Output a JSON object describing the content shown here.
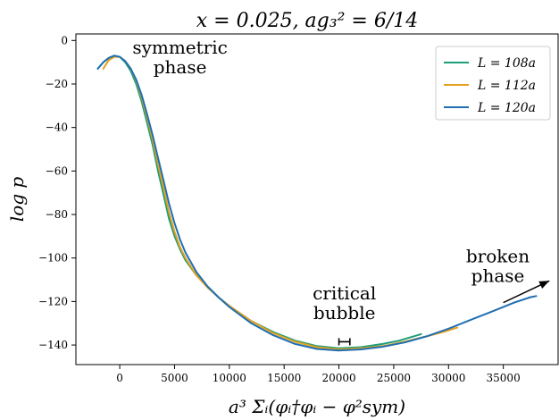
{
  "chart_data": {
    "type": "line",
    "title": "x = 0.025,  ag₃² = 6/14",
    "xlabel": "a³ Σᵢ(φᵢ†φᵢ − φ²sym)",
    "ylabel": "log p",
    "xlim": [
      -4000,
      40000
    ],
    "ylim": [
      -149,
      3
    ],
    "xticks": [
      0,
      5000,
      10000,
      15000,
      20000,
      25000,
      30000,
      35000
    ],
    "yticks": [
      0,
      -20,
      -40,
      -60,
      -80,
      -100,
      -120,
      -140
    ],
    "xtick_labels": [
      "0",
      "5000",
      "10000",
      "15000",
      "20000",
      "25000",
      "30000",
      "35000"
    ],
    "ytick_labels": [
      "0",
      "−20",
      "−40",
      "−60",
      "−80",
      "−100",
      "−120",
      "−140"
    ],
    "grid": false,
    "legend_position": "top-right",
    "series": [
      {
        "name": "L = 108a",
        "color": "#1b9e77",
        "x": [
          -2000,
          -1500,
          -1000,
          -500,
          0,
          500,
          1000,
          1500,
          2000,
          2500,
          3000,
          3500,
          4000,
          4500,
          5000,
          5500,
          6000,
          7000,
          8000,
          9000,
          10000,
          12000,
          14000,
          16000,
          18000,
          20000,
          22000,
          24000,
          25500,
          26500,
          27500
        ],
        "y": [
          -13,
          -10,
          -8,
          -7,
          -7.5,
          -10,
          -14,
          -20,
          -28,
          -38,
          -48,
          -60,
          -71,
          -82,
          -90,
          -96,
          -101,
          -108,
          -113,
          -118,
          -122,
          -129,
          -134,
          -138,
          -140.5,
          -141.5,
          -141,
          -139.5,
          -138,
          -136.5,
          -135
        ]
      },
      {
        "name": "L = 112a",
        "color": "#e6a01e",
        "x": [
          -1500,
          -1000,
          -500,
          0,
          500,
          1000,
          1500,
          2000,
          2500,
          3000,
          3500,
          4000,
          4500,
          5000,
          5500,
          6000,
          7000,
          8000,
          9000,
          10000,
          12000,
          14000,
          16000,
          18000,
          20000,
          22000,
          24000,
          26000,
          28000,
          29500,
          30800
        ],
        "y": [
          -13,
          -9,
          -7.5,
          -7.5,
          -9.5,
          -13,
          -18.5,
          -26,
          -35.5,
          -45.5,
          -57,
          -68,
          -79,
          -88,
          -95,
          -100,
          -108,
          -113.5,
          -118,
          -122,
          -129,
          -134.5,
          -138.5,
          -141,
          -142,
          -141.5,
          -140.5,
          -138.5,
          -136,
          -134,
          -132
        ]
      },
      {
        "name": "L = 120a",
        "color": "#1f6fb2",
        "x": [
          -2000,
          -1500,
          -1000,
          -500,
          0,
          500,
          1000,
          1500,
          2000,
          2500,
          3000,
          3500,
          4000,
          4500,
          5000,
          5500,
          6000,
          7000,
          8000,
          9000,
          10000,
          12000,
          14000,
          16000,
          18000,
          20000,
          22000,
          24000,
          26000,
          28000,
          30000,
          32000,
          34000,
          36000,
          37500,
          38000
        ],
        "y": [
          -13,
          -10,
          -8,
          -7,
          -7.5,
          -9.5,
          -13,
          -18,
          -25,
          -34,
          -43.5,
          -54,
          -64.5,
          -75,
          -84,
          -91.5,
          -97.5,
          -106.5,
          -113,
          -118,
          -122.5,
          -130,
          -135.5,
          -139.5,
          -141.8,
          -142.5,
          -142,
          -140.8,
          -138.8,
          -136,
          -132.5,
          -128.5,
          -124.5,
          -120.5,
          -118,
          -117.5
        ]
      }
    ],
    "annotations": [
      {
        "text": "symmetric",
        "x": 5500,
        "y": -6
      },
      {
        "text": "phase",
        "x": 5500,
        "y": -15
      },
      {
        "text": "critical",
        "x": 20500,
        "y": -119
      },
      {
        "text": "bubble",
        "x": 20500,
        "y": -128
      },
      {
        "text": "broken",
        "x": 34500,
        "y": -102
      },
      {
        "text": "phase",
        "x": 34500,
        "y": -111
      }
    ],
    "errorbar": {
      "x_from": 20000,
      "x_to": 21000,
      "y": -138.5
    },
    "arrow": {
      "x_from": 35000,
      "y_from": -120.5,
      "x_to": 39200,
      "y_to": -110.5
    }
  }
}
